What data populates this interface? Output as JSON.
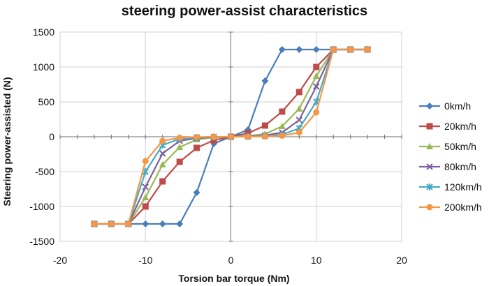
{
  "chart_data": {
    "type": "line",
    "title": "steering power-assist characteristics",
    "xlabel": "Torsion bar torque (Nm)",
    "ylabel": "Steering power-assisted (N)",
    "xlim": [
      -20,
      20
    ],
    "ylim": [
      -1500,
      1500
    ],
    "xticks": [
      -20,
      -10,
      0,
      10,
      20
    ],
    "yticks": [
      -1500,
      -1000,
      -500,
      0,
      500,
      1000,
      1500
    ],
    "grid": true,
    "legend_position": "right",
    "x": [
      -16,
      -14,
      -12,
      -10,
      -8,
      -6,
      -4,
      -2,
      0,
      2,
      4,
      6,
      8,
      10,
      12,
      14,
      16
    ],
    "series": [
      {
        "name": "0km/h",
        "color": "#4a7ebb",
        "marker": "diamond",
        "values": [
          -1250,
          -1250,
          -1250,
          -1250,
          -1250,
          -1250,
          -800,
          -100,
          0,
          100,
          800,
          1250,
          1250,
          1250,
          1250,
          1250,
          1250
        ]
      },
      {
        "name": "20km/h",
        "color": "#be4b48",
        "marker": "square",
        "values": [
          -1250,
          -1250,
          -1250,
          -1000,
          -640,
          -360,
          -160,
          -50,
          0,
          50,
          160,
          360,
          640,
          1000,
          1250,
          1250,
          1250
        ]
      },
      {
        "name": "50km/h",
        "color": "#98b954",
        "marker": "triangle",
        "values": [
          -1250,
          -1250,
          -1250,
          -870,
          -400,
          -150,
          -40,
          -10,
          0,
          10,
          40,
          150,
          400,
          870,
          1250,
          1250,
          1250
        ]
      },
      {
        "name": "80km/h",
        "color": "#7d60a0",
        "marker": "x",
        "values": [
          -1250,
          -1250,
          -1250,
          -720,
          -240,
          -60,
          -20,
          -5,
          0,
          5,
          20,
          60,
          240,
          720,
          1250,
          1250,
          1250
        ]
      },
      {
        "name": "120km/h",
        "color": "#46aac5",
        "marker": "star",
        "values": [
          -1250,
          -1250,
          -1250,
          -500,
          -120,
          -30,
          -10,
          -2,
          0,
          2,
          10,
          30,
          120,
          500,
          1250,
          1250,
          1250
        ]
      },
      {
        "name": "200km/h",
        "color": "#f79646",
        "marker": "circle",
        "values": [
          -1250,
          -1250,
          -1250,
          -350,
          -60,
          -15,
          -5,
          0,
          0,
          0,
          5,
          15,
          60,
          350,
          1250,
          1250,
          1250
        ]
      }
    ]
  }
}
